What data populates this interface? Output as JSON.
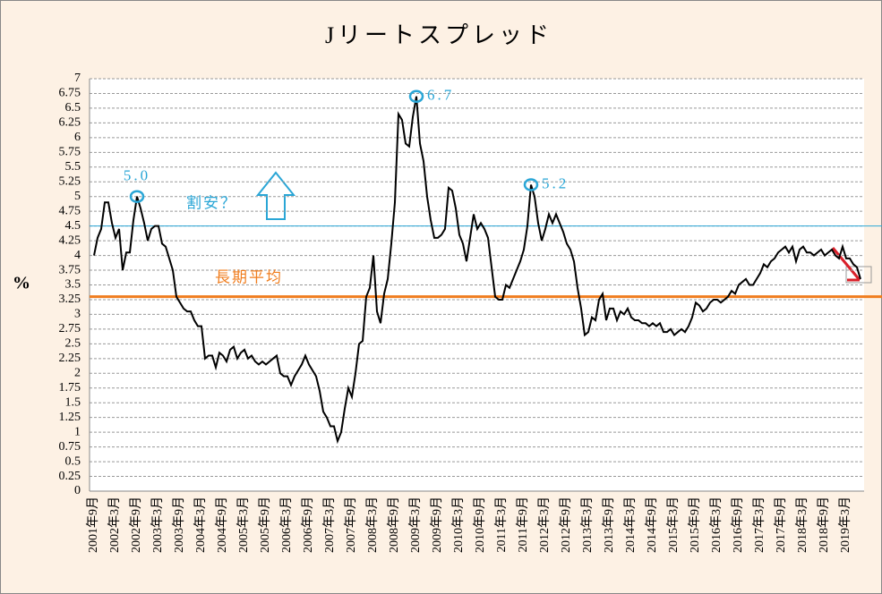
{
  "chart_data": {
    "type": "line",
    "title": "Jリートスプレッド",
    "y_label": "%",
    "categories": [
      "2001年9月",
      null,
      null,
      null,
      null,
      null,
      "2002年3月",
      null,
      null,
      null,
      null,
      null,
      "2002年9月",
      null,
      null,
      null,
      null,
      null,
      "2003年3月",
      null,
      null,
      null,
      null,
      null,
      "2003年9月",
      null,
      null,
      null,
      null,
      null,
      "2004年3月",
      null,
      null,
      null,
      null,
      null,
      "2004年9月",
      null,
      null,
      null,
      null,
      null,
      "2005年3月",
      null,
      null,
      null,
      null,
      null,
      "2005年9月",
      null,
      null,
      null,
      null,
      null,
      "2006年3月",
      null,
      null,
      null,
      null,
      null,
      "2006年9月",
      null,
      null,
      null,
      null,
      null,
      "2007年3月",
      null,
      null,
      null,
      null,
      null,
      "2007年9月",
      null,
      null,
      null,
      null,
      null,
      "2008年3月",
      null,
      null,
      null,
      null,
      null,
      "2008年9月",
      null,
      null,
      null,
      null,
      null,
      "2009年3月",
      null,
      null,
      null,
      null,
      null,
      "2009年9月",
      null,
      null,
      null,
      null,
      null,
      "2010年3月",
      null,
      null,
      null,
      null,
      null,
      "2010年9月",
      null,
      null,
      null,
      null,
      null,
      "2011年3月",
      null,
      null,
      null,
      null,
      null,
      "2011年9月",
      null,
      null,
      null,
      null,
      null,
      "2012年3月",
      null,
      null,
      null,
      null,
      null,
      "2012年9月",
      null,
      null,
      null,
      null,
      null,
      "2013年3月",
      null,
      null,
      null,
      null,
      null,
      "2013年9月",
      null,
      null,
      null,
      null,
      null,
      "2014年3月",
      null,
      null,
      null,
      null,
      null,
      "2014年9月",
      null,
      null,
      null,
      null,
      null,
      "2015年3月",
      null,
      null,
      null,
      null,
      null,
      "2015年9月",
      null,
      null,
      null,
      null,
      null,
      "2016年3月",
      null,
      null,
      null,
      null,
      null,
      "2016年9月",
      null,
      null,
      null,
      null,
      null,
      "2017年3月",
      null,
      null,
      null,
      null,
      null,
      "2017年9月",
      null,
      null,
      null,
      null,
      null,
      "2018年3月",
      null,
      null,
      null,
      null,
      null,
      "2018年9月",
      null,
      null,
      null,
      null,
      null,
      "2019年3月",
      null,
      null,
      null,
      null
    ],
    "values": [
      4.0,
      4.3,
      4.45,
      4.9,
      4.9,
      4.55,
      4.3,
      4.45,
      3.75,
      4.05,
      4.05,
      4.6,
      5.0,
      4.8,
      4.55,
      4.25,
      4.45,
      4.5,
      4.5,
      4.2,
      4.15,
      3.95,
      3.75,
      3.3,
      3.2,
      3.1,
      3.05,
      3.05,
      2.9,
      2.8,
      2.8,
      2.25,
      2.3,
      2.3,
      2.1,
      2.35,
      2.3,
      2.2,
      2.4,
      2.45,
      2.25,
      2.35,
      2.4,
      2.25,
      2.3,
      2.2,
      2.15,
      2.2,
      2.15,
      2.2,
      2.25,
      2.3,
      2.0,
      1.95,
      1.95,
      1.8,
      1.95,
      2.05,
      2.15,
      2.3,
      2.15,
      2.05,
      1.95,
      1.7,
      1.35,
      1.25,
      1.1,
      1.1,
      0.85,
      1.0,
      1.4,
      1.75,
      1.6,
      2.0,
      2.5,
      2.55,
      3.3,
      3.45,
      4.0,
      3.05,
      2.85,
      3.35,
      3.6,
      4.2,
      4.9,
      6.4,
      6.3,
      5.9,
      5.85,
      6.35,
      6.7,
      5.9,
      5.6,
      5.0,
      4.6,
      4.3,
      4.3,
      4.35,
      4.45,
      5.15,
      5.1,
      4.8,
      4.35,
      4.2,
      3.9,
      4.3,
      4.7,
      4.45,
      4.55,
      4.45,
      4.3,
      3.8,
      3.3,
      3.25,
      3.25,
      3.5,
      3.45,
      3.6,
      3.75,
      3.9,
      4.1,
      4.5,
      5.2,
      5.0,
      4.55,
      4.25,
      4.45,
      4.7,
      4.55,
      4.7,
      4.55,
      4.4,
      4.2,
      4.1,
      3.9,
      3.45,
      3.1,
      2.65,
      2.7,
      2.95,
      2.9,
      3.25,
      3.35,
      2.9,
      3.1,
      3.1,
      2.9,
      3.05,
      3.0,
      3.1,
      2.95,
      2.9,
      2.9,
      2.85,
      2.85,
      2.8,
      2.85,
      2.8,
      2.85,
      2.7,
      2.7,
      2.75,
      2.65,
      2.7,
      2.75,
      2.7,
      2.8,
      2.95,
      3.2,
      3.15,
      3.05,
      3.1,
      3.2,
      3.25,
      3.25,
      3.2,
      3.25,
      3.3,
      3.4,
      3.35,
      3.5,
      3.55,
      3.6,
      3.5,
      3.5,
      3.6,
      3.7,
      3.85,
      3.8,
      3.9,
      3.95,
      4.05,
      4.1,
      4.15,
      4.05,
      4.15,
      3.9,
      4.1,
      4.15,
      4.05,
      4.05,
      4.0,
      4.05,
      4.1,
      4.0,
      4.05,
      4.1,
      4.0,
      3.95,
      4.15,
      3.95,
      3.95,
      3.85,
      3.8,
      3.6
    ],
    "color": "#000000",
    "ylim": [
      0,
      7
    ],
    "yticks": [
      0,
      0.25,
      0.5,
      0.75,
      1,
      1.25,
      1.5,
      1.75,
      2,
      2.25,
      2.5,
      2.75,
      3,
      3.25,
      3.5,
      3.75,
      4,
      4.25,
      4.5,
      4.75,
      5,
      5.25,
      5.5,
      5.75,
      6,
      6.25,
      6.5,
      6.75,
      7
    ],
    "grid": true,
    "peak_labels": [
      {
        "value": 5.0,
        "label": "5.0"
      },
      {
        "value": 6.7,
        "label": "6.7"
      },
      {
        "value": 5.2,
        "label": "5.2"
      }
    ],
    "peak_color": "#2aa6d6",
    "reference_lines": [
      {
        "label": "割安？",
        "value": 4.5,
        "color": "#2aa6d6"
      },
      {
        "label": "長期平均",
        "value": 3.3,
        "color": "#f07d1e"
      }
    ]
  }
}
